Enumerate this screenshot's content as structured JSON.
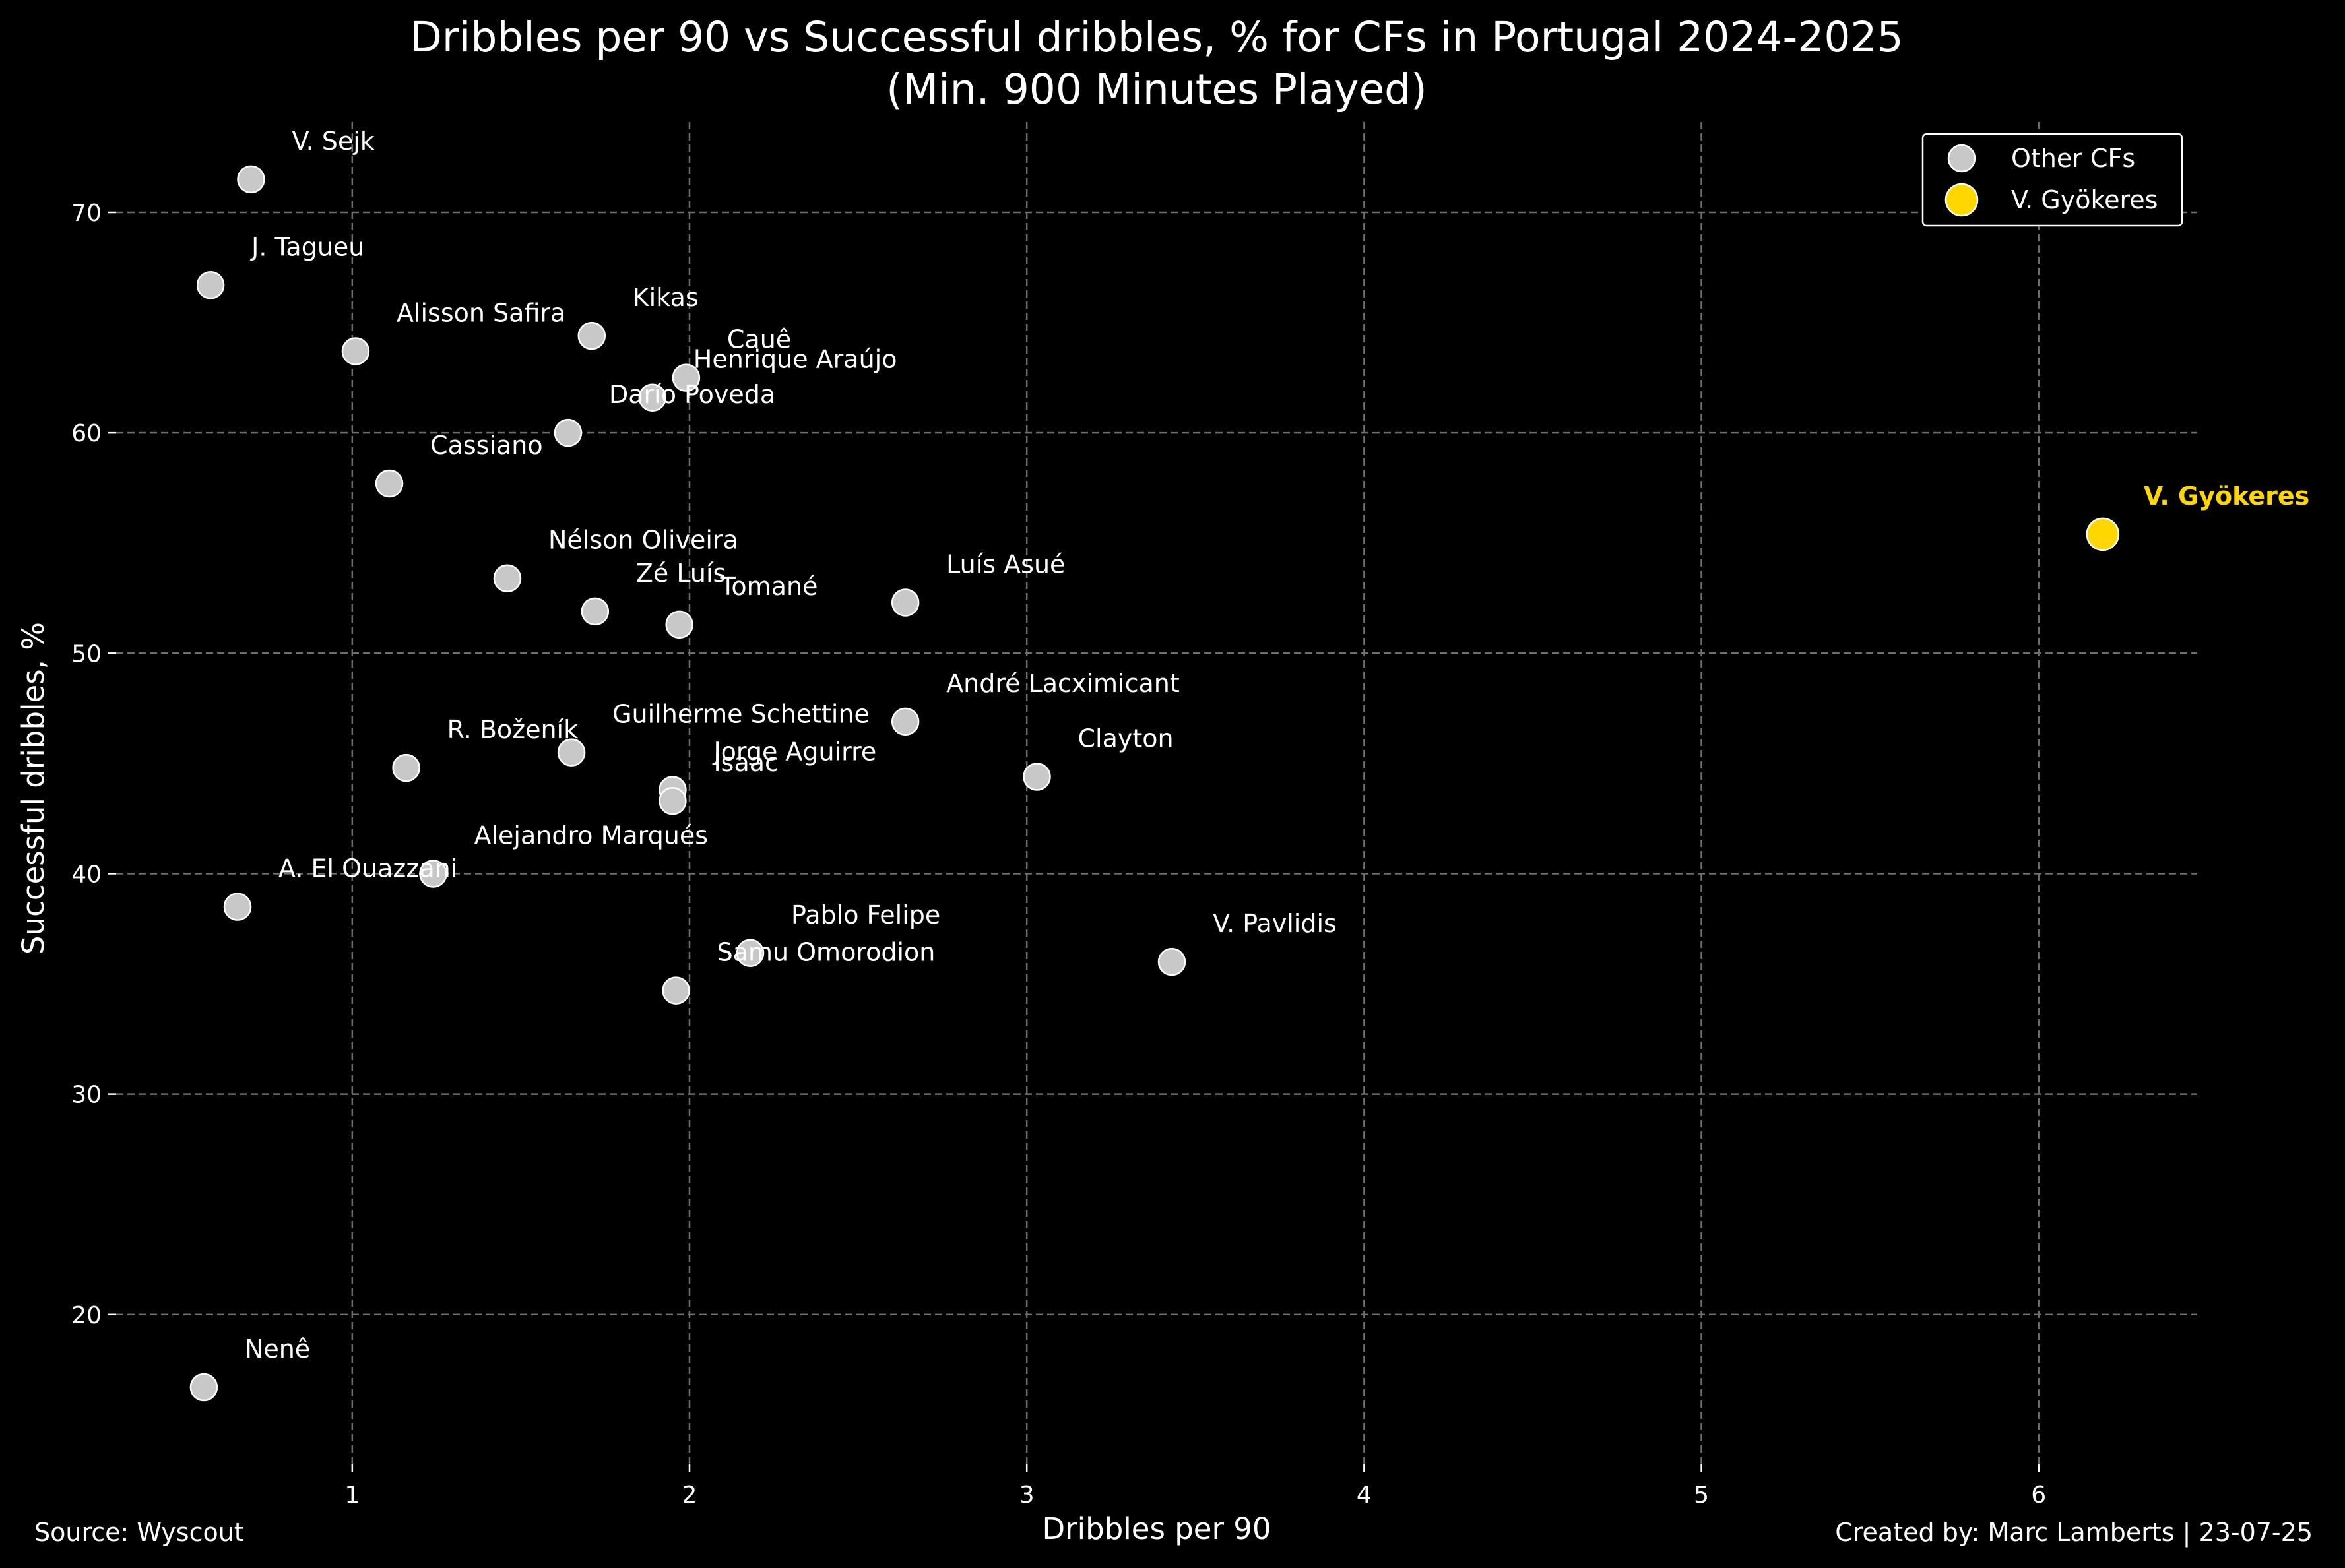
{
  "chart_data": {
    "type": "scatter",
    "title": "Dribbles per 90 vs Successful dribbles, % for CFs in Portugal 2024-2025",
    "subtitle": "(Min. 900 Minutes Played)",
    "xlabel": "Dribbles per 90",
    "ylabel": "Successful dribbles, %",
    "xlim": [
      0.3,
      6.47
    ],
    "ylim": [
      13.2,
      74.1
    ],
    "xticks": [
      1,
      2,
      3,
      4,
      5,
      6
    ],
    "yticks": [
      20,
      30,
      40,
      50,
      60,
      70
    ],
    "grid": true,
    "legend_position": "top-right",
    "series": [
      {
        "name": "Other CFs",
        "color": "#c8c8c8",
        "points": [
          {
            "label": "V. Sejk",
            "x": 0.7,
            "y": 71.5
          },
          {
            "label": "J. Tagueu",
            "x": 0.58,
            "y": 66.7
          },
          {
            "label": "Alisson Safira",
            "x": 1.01,
            "y": 63.7
          },
          {
            "label": "Kikas",
            "x": 1.71,
            "y": 64.4
          },
          {
            "label": "Cauê",
            "x": 1.99,
            "y": 62.5
          },
          {
            "label": "Henrique Araújo",
            "x": 1.89,
            "y": 61.6
          },
          {
            "label": "Darío Poveda",
            "x": 1.64,
            "y": 60.0
          },
          {
            "label": "Cassiano",
            "x": 1.11,
            "y": 57.7
          },
          {
            "label": "Nélson Oliveira",
            "x": 1.46,
            "y": 53.4
          },
          {
            "label": "Zé Luís",
            "x": 1.72,
            "y": 51.9
          },
          {
            "label": "Tomané",
            "x": 1.97,
            "y": 51.3
          },
          {
            "label": "Luís Asué",
            "x": 2.64,
            "y": 52.3
          },
          {
            "label": "André Lacximicant",
            "x": 2.64,
            "y": 46.9
          },
          {
            "label": "Clayton",
            "x": 3.03,
            "y": 44.4
          },
          {
            "label": "R. Boženík",
            "x": 1.16,
            "y": 44.8
          },
          {
            "label": "Guilherme Schettine",
            "x": 1.65,
            "y": 45.5
          },
          {
            "label": "Jorge Aguirre",
            "x": 1.95,
            "y": 43.8
          },
          {
            "label": "Isaac",
            "x": 1.95,
            "y": 43.3
          },
          {
            "label": "Alejandro Marqués",
            "x": 1.24,
            "y": 40.0
          },
          {
            "label": "A. El Ouazzani",
            "x": 0.66,
            "y": 38.5
          },
          {
            "label": "Pablo Felipe",
            "x": 2.18,
            "y": 36.4
          },
          {
            "label": "Samu Omorodion",
            "x": 1.96,
            "y": 34.7
          },
          {
            "label": "V. Pavlidis",
            "x": 3.43,
            "y": 36.0
          },
          {
            "label": "Nenê",
            "x": 0.56,
            "y": 16.7
          }
        ]
      },
      {
        "name": "V. Gyökeres",
        "color": "#ffd700",
        "points": [
          {
            "label": "V. Gyökeres",
            "x": 6.19,
            "y": 55.4
          }
        ]
      }
    ]
  },
  "footer": {
    "source": "Source: Wyscout",
    "credit": "Created by: Marc Lamberts | 23-07-25"
  },
  "colors": {
    "background": "#000000",
    "text": "#ffffff",
    "grid": "#6e6e6e",
    "highlight": "#ffd700",
    "point": "#c8c8c8"
  }
}
